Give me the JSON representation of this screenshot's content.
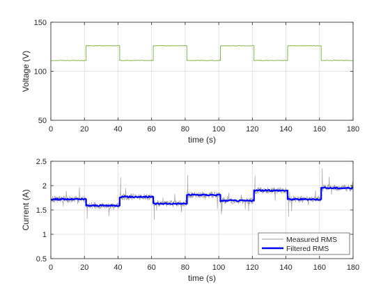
{
  "chart_data": [
    {
      "type": "line",
      "xlabel": "time (s)",
      "ylabel": "Voltage (V)",
      "xlim": [
        0,
        180
      ],
      "ylim": [
        50,
        150
      ],
      "xticks": [
        "0",
        "20",
        "40",
        "60",
        "80",
        "100",
        "120",
        "140",
        "160",
        "180"
      ],
      "yticks": [
        "50",
        "100",
        "150"
      ],
      "grid": true,
      "series": [
        {
          "color": "#77ac30",
          "step": true,
          "x": [
            0,
            21,
            41,
            61,
            81,
            101,
            121,
            141,
            161,
            180
          ],
          "y": [
            111,
            126,
            111,
            126,
            111,
            126,
            111,
            126,
            111,
            111
          ]
        }
      ]
    },
    {
      "type": "line",
      "xlabel": "time (s)",
      "ylabel": "Current (A)",
      "xlim": [
        0,
        180
      ],
      "ylim": [
        0.5,
        2.5
      ],
      "xticks": [
        "0",
        "20",
        "40",
        "60",
        "80",
        "100",
        "120",
        "140",
        "160",
        "180"
      ],
      "yticks": [
        "0.5",
        "1",
        "1.5",
        "2",
        "2.5"
      ],
      "grid": true,
      "legend": "bottom-right",
      "series": [
        {
          "name": "Measured RMS",
          "color": "#a0a0a0",
          "noisy": true,
          "x": [
            0,
            21,
            41,
            61,
            81,
            101,
            121,
            141,
            161,
            180
          ],
          "y": [
            1.72,
            1.59,
            1.77,
            1.63,
            1.81,
            1.69,
            1.9,
            1.72,
            1.95,
            1.95
          ]
        },
        {
          "name": "Filtered RMS",
          "color": "#0000ff",
          "step": true,
          "x": [
            0,
            21,
            41,
            61,
            81,
            101,
            121,
            141,
            161,
            180
          ],
          "y": [
            1.72,
            1.59,
            1.77,
            1.63,
            1.81,
            1.69,
            1.9,
            1.72,
            1.95,
            1.95
          ]
        }
      ]
    }
  ]
}
